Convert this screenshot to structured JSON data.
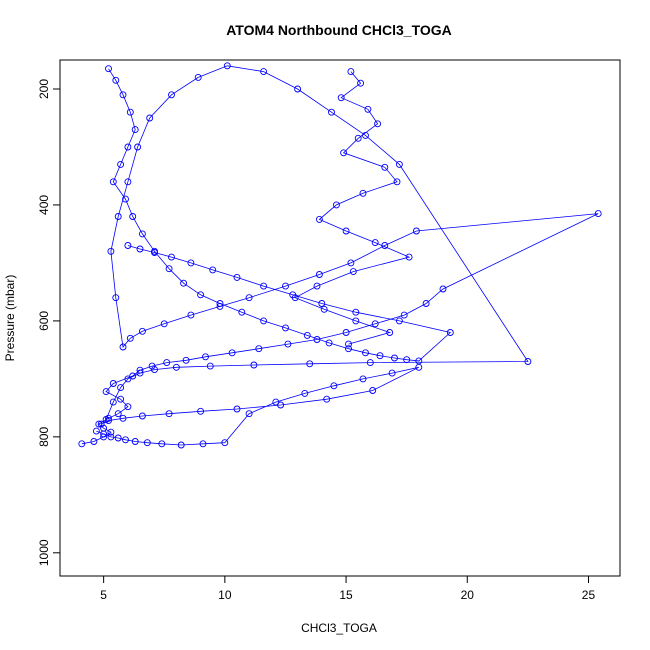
{
  "chart_data": {
    "type": "scatter",
    "title": "ATOM4 Northbound CHCl3_TOGA",
    "xlabel": "CHCl3_TOGA",
    "ylabel": "Pressure (mbar)",
    "xlim": [
      3.2,
      26.3
    ],
    "ylim": [
      1040,
      150
    ],
    "y_reversed": true,
    "x_ticks": [
      5,
      10,
      15,
      20,
      25
    ],
    "y_ticks": [
      200,
      400,
      600,
      800,
      1000
    ],
    "grid": false,
    "legend": "none",
    "colors": {
      "series": "#0000ff",
      "axis": "#000000"
    },
    "series": [
      {
        "style": "line+open-circle",
        "x": [
          4.1,
          4.6,
          5.0,
          5.3,
          5.0,
          4.8,
          5.2,
          5.6,
          6.0,
          5.7,
          5.1,
          5.4,
          6.2,
          6.5,
          7.0,
          7.6,
          8.4,
          9.2,
          10.3,
          11.4,
          12.6,
          13.8,
          15.0,
          16.2,
          17.4,
          18.3,
          19.0,
          25.4,
          17.9,
          16.6,
          15.2,
          13.9,
          12.5,
          11.0,
          9.8,
          8.6,
          7.5,
          6.6,
          6.1,
          5.8,
          5.5,
          5.3,
          5.6,
          6.0,
          6.4,
          6.9,
          7.8,
          8.9,
          10.1,
          11.6,
          13.0,
          14.4,
          15.8,
          17.2,
          22.5,
          16.0,
          13.5,
          11.2,
          9.4,
          8.0,
          7.1,
          6.5,
          6.0,
          5.7,
          5.4,
          5.1
        ],
        "y": [
          812,
          808,
          800,
          792,
          785,
          778,
          768,
          760,
          748,
          735,
          722,
          708,
          695,
          685,
          678,
          672,
          668,
          662,
          655,
          648,
          640,
          632,
          620,
          605,
          590,
          570,
          545,
          415,
          445,
          470,
          500,
          520,
          540,
          560,
          575,
          590,
          605,
          618,
          630,
          645,
          560,
          480,
          420,
          360,
          300,
          250,
          210,
          180,
          160,
          170,
          200,
          240,
          280,
          330,
          670,
          672,
          674,
          676,
          678,
          680,
          684,
          690,
          700,
          715,
          740,
          770
        ]
      },
      {
        "style": "line+open-circle",
        "x": [
          5.2,
          5.5,
          5.8,
          6.1,
          6.3,
          6.0,
          5.7,
          5.4,
          5.9,
          6.2,
          6.6,
          7.1,
          7.7,
          8.3,
          9.0,
          9.8,
          10.7,
          11.6,
          12.5,
          13.4,
          14.3,
          15.1,
          15.8,
          16.4,
          17.0,
          17.5,
          18.0,
          19.3,
          17.2,
          15.4,
          14.0,
          12.8,
          11.6,
          10.5,
          9.5,
          8.6,
          7.8,
          7.1,
          6.5,
          6.0
        ],
        "y": [
          165,
          185,
          210,
          240,
          270,
          300,
          330,
          360,
          390,
          420,
          450,
          480,
          510,
          535,
          555,
          570,
          585,
          600,
          612,
          625,
          638,
          648,
          655,
          660,
          664,
          667,
          669,
          620,
          600,
          585,
          570,
          555,
          540,
          525,
          512,
          500,
          490,
          482,
          476,
          470
        ]
      },
      {
        "style": "line+open-circle",
        "x": [
          4.7,
          5.0,
          5.3,
          5.6,
          5.9,
          6.3,
          6.8,
          7.4,
          8.2,
          9.1,
          10.0,
          11.0,
          12.1,
          13.3,
          14.5,
          15.7,
          16.9,
          18.0,
          16.1,
          14.2,
          12.3,
          10.5,
          9.0,
          7.7,
          6.6,
          5.8,
          5.2,
          4.9
        ],
        "y": [
          790,
          795,
          800,
          802,
          805,
          808,
          810,
          812,
          814,
          812,
          810,
          760,
          740,
          725,
          712,
          700,
          690,
          680,
          720,
          735,
          745,
          752,
          756,
          760,
          764,
          768,
          772,
          778
        ]
      },
      {
        "style": "line+open-circle",
        "x": [
          15.2,
          15.6,
          14.8,
          15.9,
          16.3,
          15.5,
          14.9,
          16.6,
          17.1,
          15.7,
          14.6,
          13.9,
          15.0,
          16.2,
          17.6,
          15.3,
          13.8,
          12.9,
          14.1,
          15.4,
          16.8,
          15.1
        ],
        "y": [
          170,
          190,
          215,
          235,
          260,
          285,
          310,
          335,
          360,
          380,
          400,
          425,
          445,
          465,
          490,
          515,
          540,
          560,
          580,
          600,
          620,
          640
        ]
      }
    ]
  }
}
